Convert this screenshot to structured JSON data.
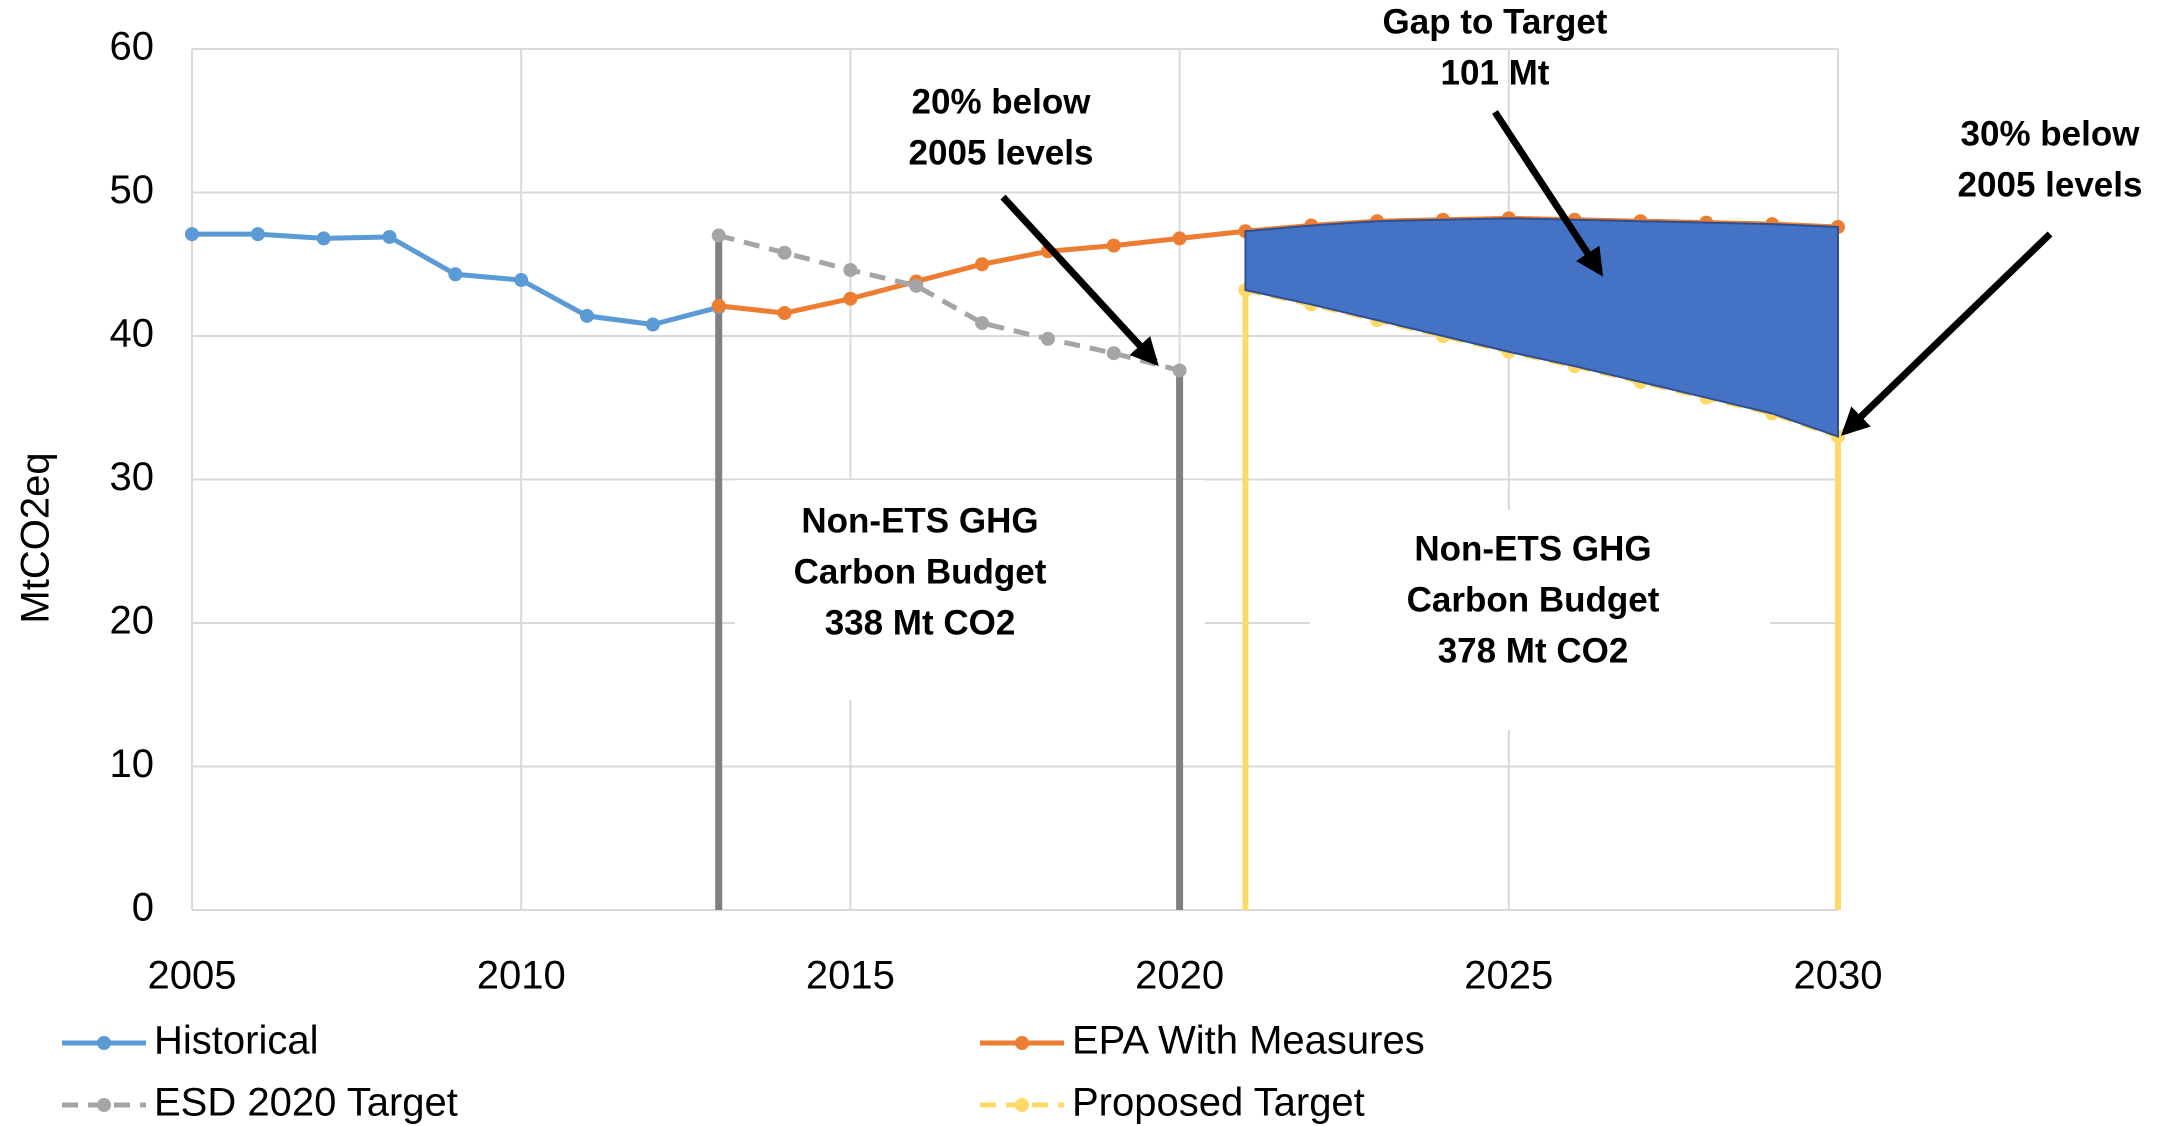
{
  "chart_data": {
    "type": "line",
    "ylabel": "MtCO2eq",
    "xlim": [
      2005,
      2030
    ],
    "xticks": [
      2005,
      2010,
      2015,
      2020,
      2025,
      2030
    ],
    "ylim": [
      0,
      60
    ],
    "yticks": [
      0,
      10,
      20,
      30,
      40,
      50,
      60
    ],
    "grid": true,
    "legend": "bottom",
    "series": [
      {
        "name": "Historical",
        "color": "#5b9bd5",
        "dashed": false,
        "x": [
          2005,
          2006,
          2007,
          2008,
          2009,
          2010,
          2011,
          2012,
          2013
        ],
        "values": [
          47.1,
          47.1,
          46.8,
          46.9,
          44.3,
          43.9,
          41.4,
          40.8,
          42.0
        ]
      },
      {
        "name": "EPA With Measures",
        "color": "#ed7d31",
        "dashed": false,
        "x": [
          2013,
          2014,
          2015,
          2016,
          2017,
          2018,
          2019,
          2020,
          2021,
          2022,
          2023,
          2024,
          2025,
          2026,
          2027,
          2028,
          2029,
          2030
        ],
        "values": [
          42.1,
          41.6,
          42.6,
          43.8,
          45.0,
          45.9,
          46.3,
          46.8,
          47.3,
          47.7,
          48.0,
          48.1,
          48.2,
          48.1,
          48.0,
          47.9,
          47.8,
          47.6
        ]
      },
      {
        "name": "ESD 2020 Target",
        "color": "#a5a5a5",
        "dashed": true,
        "x": [
          2013,
          2014,
          2015,
          2016,
          2017,
          2018,
          2019,
          2020
        ],
        "values": [
          47.0,
          45.8,
          44.6,
          43.5,
          40.9,
          39.8,
          38.8,
          37.6
        ]
      },
      {
        "name": "Proposed Target",
        "color": "#ffd966",
        "dashed": true,
        "x": [
          2021,
          2022,
          2023,
          2024,
          2025,
          2026,
          2027,
          2028,
          2029,
          2030
        ],
        "values": [
          43.2,
          42.2,
          41.1,
          40.0,
          38.9,
          37.9,
          36.8,
          35.7,
          34.6,
          33.0
        ]
      }
    ],
    "gap_color": "#4472c4",
    "annotations": [
      {
        "lines": [
          "Gap to Target",
          "101 Mt"
        ]
      },
      {
        "lines": [
          "20% below",
          "2005 levels"
        ]
      },
      {
        "lines": [
          "30% below",
          "2005 levels"
        ]
      },
      {
        "lines": [
          "Non-ETS GHG",
          "Carbon Budget",
          "338 Mt CO2"
        ]
      },
      {
        "lines": [
          "Non-ETS GHG",
          "Carbon Budget",
          "378 Mt CO2"
        ]
      }
    ]
  }
}
